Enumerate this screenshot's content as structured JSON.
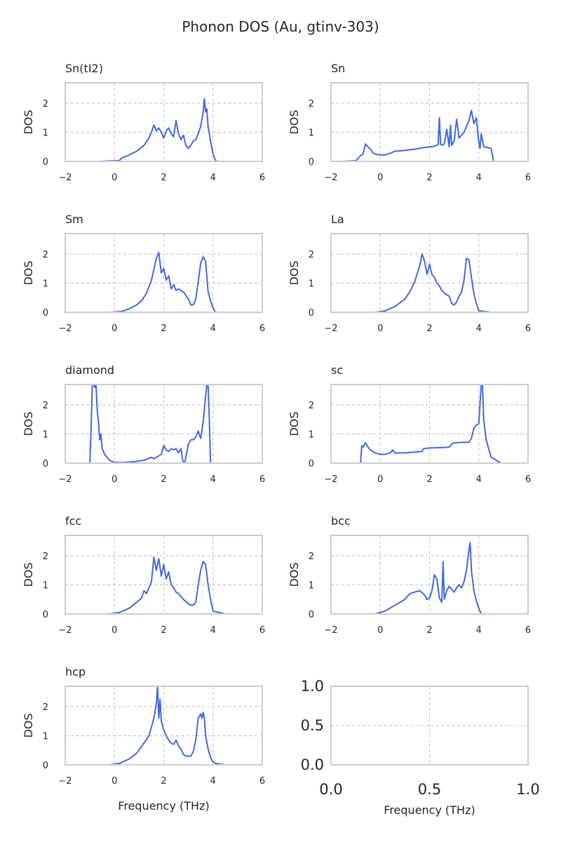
{
  "figure": {
    "title": "Phonon DOS (Au, gtinv-303)",
    "xlabel": "Frequency (THz)",
    "ylabel": "DOS",
    "colors": {
      "line": "#4169e1",
      "spine": "#cccccc",
      "grid": "#cccccc",
      "text": "#262626"
    }
  },
  "chart_data": [
    {
      "type": "line",
      "title": "Sn(tI2)",
      "xlabel": "",
      "ylabel": "DOS",
      "xlim": [
        -2,
        6
      ],
      "ylim": [
        0,
        2.7
      ],
      "xticks": [
        -2,
        0,
        2,
        4,
        6
      ],
      "yticks": [
        0,
        1,
        2
      ],
      "grid": true,
      "series": [
        {
          "x": [
            -0.6,
            0.2,
            0.3,
            0.6,
            0.9,
            1.2,
            1.4,
            1.5,
            1.6,
            1.7,
            1.8,
            1.9,
            2.0,
            2.1,
            2.2,
            2.3,
            2.4,
            2.5,
            2.6,
            2.7,
            2.8,
            2.9,
            3.0,
            3.1,
            3.2,
            3.3,
            3.4,
            3.5,
            3.6,
            3.65,
            3.7,
            3.75,
            3.8,
            3.9,
            4.0,
            4.1,
            4.2,
            4.7
          ],
          "y": [
            0,
            0.03,
            0.12,
            0.22,
            0.35,
            0.55,
            0.8,
            1.0,
            1.25,
            1.05,
            1.15,
            1.0,
            0.8,
            1.05,
            1.15,
            0.95,
            0.85,
            1.4,
            0.95,
            0.75,
            0.9,
            0.55,
            0.45,
            0.55,
            0.7,
            0.75,
            0.95,
            1.2,
            1.7,
            2.15,
            1.7,
            1.8,
            1.2,
            0.7,
            0.25,
            0.03,
            0,
            0
          ]
        }
      ]
    },
    {
      "type": "line",
      "title": "Sn",
      "xlabel": "",
      "ylabel": "DOS",
      "xlim": [
        -2,
        6
      ],
      "ylim": [
        0,
        2.7
      ],
      "xticks": [
        -2,
        0,
        2,
        4,
        6
      ],
      "yticks": [
        0,
        1,
        2
      ],
      "grid": true,
      "series": [
        {
          "x": [
            -1.6,
            -1.0,
            -0.9,
            -0.8,
            -0.7,
            -0.6,
            -0.5,
            -0.4,
            -0.3,
            -0.2,
            0,
            0.2,
            0.4,
            0.6,
            0.8,
            1.0,
            1.4,
            1.8,
            2.0,
            2.2,
            2.35,
            2.4,
            2.45,
            2.5,
            2.6,
            2.7,
            2.8,
            2.85,
            2.9,
            3.0,
            3.1,
            3.2,
            3.3,
            3.4,
            3.6,
            3.7,
            3.8,
            3.9,
            4.0,
            4.05,
            4.1,
            4.2,
            4.5,
            4.6,
            5.1
          ],
          "y": [
            0,
            0.02,
            0.1,
            0.2,
            0.25,
            0.6,
            0.5,
            0.42,
            0.3,
            0.25,
            0.22,
            0.22,
            0.28,
            0.35,
            0.36,
            0.38,
            0.42,
            0.48,
            0.5,
            0.52,
            0.58,
            1.5,
            0.6,
            0.55,
            0.6,
            1.1,
            0.5,
            1.25,
            0.55,
            0.7,
            1.45,
            0.8,
            0.9,
            1.0,
            1.4,
            1.75,
            1.3,
            1.5,
            0.65,
            0.45,
            0.95,
            0.5,
            0.45,
            0,
            0
          ]
        }
      ]
    },
    {
      "type": "line",
      "title": "Sm",
      "xlabel": "",
      "ylabel": "DOS",
      "xlim": [
        -2,
        6
      ],
      "ylim": [
        0,
        2.7
      ],
      "xticks": [
        -2,
        0,
        2,
        4,
        6
      ],
      "yticks": [
        0,
        1,
        2
      ],
      "grid": true,
      "series": [
        {
          "x": [
            -0.2,
            0.3,
            0.6,
            0.9,
            1.1,
            1.3,
            1.5,
            1.7,
            1.8,
            1.9,
            2.0,
            2.1,
            2.2,
            2.3,
            2.4,
            2.5,
            2.6,
            2.8,
            3.0,
            3.1,
            3.2,
            3.3,
            3.4,
            3.5,
            3.6,
            3.7,
            3.8,
            3.9,
            4.0,
            4.1,
            4.6
          ],
          "y": [
            0,
            0.03,
            0.12,
            0.25,
            0.4,
            0.65,
            1.1,
            1.85,
            2.05,
            1.35,
            1.5,
            1.1,
            1.25,
            0.8,
            0.95,
            0.75,
            0.8,
            0.7,
            0.45,
            0.25,
            0.25,
            0.45,
            1.05,
            1.7,
            1.9,
            1.75,
            0.7,
            0.4,
            0.15,
            0,
            0
          ]
        }
      ]
    },
    {
      "type": "line",
      "title": "La",
      "xlabel": "",
      "ylabel": "DOS",
      "xlim": [
        -2,
        6
      ],
      "ylim": [
        0,
        2.7
      ],
      "xticks": [
        -2,
        0,
        2,
        4,
        6
      ],
      "yticks": [
        0,
        1,
        2
      ],
      "grid": true,
      "series": [
        {
          "x": [
            -0.2,
            0.2,
            0.6,
            1.0,
            1.2,
            1.4,
            1.6,
            1.7,
            1.8,
            1.9,
            2.0,
            2.1,
            2.2,
            2.3,
            2.4,
            2.5,
            2.6,
            2.7,
            2.8,
            2.9,
            3.0,
            3.1,
            3.2,
            3.3,
            3.4,
            3.5,
            3.6,
            3.7,
            3.8,
            3.9,
            4.0,
            4.5
          ],
          "y": [
            0,
            0.05,
            0.2,
            0.45,
            0.7,
            1.05,
            1.6,
            2.0,
            1.75,
            1.3,
            1.65,
            1.3,
            1.2,
            1.0,
            0.9,
            0.75,
            0.65,
            0.6,
            0.55,
            0.3,
            0.25,
            0.35,
            0.55,
            0.7,
            1.1,
            1.85,
            1.8,
            1.2,
            0.65,
            0.3,
            0.05,
            0
          ]
        }
      ]
    },
    {
      "type": "line",
      "title": "diamond",
      "xlabel": "",
      "ylabel": "DOS",
      "xlim": [
        -2,
        6
      ],
      "ylim": [
        0,
        2.7
      ],
      "xticks": [
        -2,
        0,
        2,
        4,
        6
      ],
      "yticks": [
        0,
        1,
        2
      ],
      "grid": true,
      "series": [
        {
          "x": [
            -1.4,
            -1.0,
            -0.95,
            -0.9,
            -0.85,
            -0.8,
            -0.75,
            -0.7,
            -0.65,
            -0.6,
            -0.55,
            -0.5,
            -0.4,
            -0.2,
            0,
            0.4,
            0.8,
            1.2,
            1.5,
            1.6,
            1.7,
            1.9,
            2.0,
            2.1,
            2.2,
            2.3,
            2.4,
            2.5,
            2.6,
            2.7,
            2.75,
            2.8,
            2.85,
            3.0,
            3.1,
            3.2,
            3.3,
            3.4,
            3.5,
            3.6,
            3.7,
            3.75,
            3.8,
            3.85,
            3.9,
            4.4
          ],
          "y": [
            0,
            0,
            1.2,
            2.7,
            2.7,
            2.6,
            2.7,
            1.8,
            1.4,
            0.8,
            1.0,
            0.5,
            0.3,
            0.1,
            0.02,
            0.02,
            0.05,
            0.1,
            0.2,
            0.15,
            0.2,
            0.3,
            0.6,
            0.45,
            0.4,
            0.5,
            0.45,
            0.5,
            0.35,
            0.5,
            0.2,
            0,
            0,
            0.65,
            0.8,
            0.8,
            0.9,
            1.1,
            0.85,
            1.4,
            2.3,
            2.7,
            2.7,
            1.5,
            0,
            0
          ]
        }
      ]
    },
    {
      "type": "line",
      "title": "sc",
      "xlabel": "",
      "ylabel": "DOS",
      "xlim": [
        -2,
        6
      ],
      "ylim": [
        0,
        2.7
      ],
      "xticks": [
        -2,
        0,
        2,
        4,
        6
      ],
      "yticks": [
        0,
        1,
        2
      ],
      "grid": true,
      "series": [
        {
          "x": [
            -1.3,
            -0.8,
            -0.75,
            -0.7,
            -0.6,
            -0.5,
            -0.4,
            -0.2,
            0,
            0.2,
            0.4,
            0.5,
            0.6,
            1.0,
            1.7,
            1.75,
            1.8,
            2.0,
            2.5,
            2.8,
            2.9,
            3.0,
            3.6,
            3.7,
            3.8,
            3.9,
            4.0,
            4.1,
            4.15,
            4.2,
            4.3,
            4.5,
            4.9
          ],
          "y": [
            0,
            0,
            0.6,
            0.55,
            0.7,
            0.55,
            0.45,
            0.35,
            0.3,
            0.3,
            0.35,
            0.45,
            0.35,
            0.35,
            0.4,
            0.5,
            0.5,
            0.52,
            0.53,
            0.55,
            0.65,
            0.7,
            0.72,
            0.85,
            1.2,
            1.3,
            1.35,
            2.7,
            2.7,
            1.5,
            0.8,
            0.2,
            0
          ]
        }
      ]
    },
    {
      "type": "line",
      "title": "fcc",
      "xlabel": "",
      "ylabel": "DOS",
      "xlim": [
        -2,
        6
      ],
      "ylim": [
        0,
        2.7
      ],
      "xticks": [
        -2,
        0,
        2,
        4,
        6
      ],
      "yticks": [
        0,
        1,
        2
      ],
      "grid": true,
      "series": [
        {
          "x": [
            -0.2,
            0.2,
            0.6,
            0.9,
            1.1,
            1.2,
            1.3,
            1.4,
            1.5,
            1.6,
            1.7,
            1.8,
            1.9,
            2.0,
            2.1,
            2.2,
            2.3,
            2.4,
            2.5,
            2.6,
            2.8,
            3.0,
            3.1,
            3.2,
            3.3,
            3.4,
            3.5,
            3.6,
            3.7,
            3.8,
            3.9,
            4.0,
            4.5
          ],
          "y": [
            0,
            0.05,
            0.2,
            0.4,
            0.55,
            0.8,
            0.7,
            0.9,
            1.1,
            1.95,
            1.5,
            1.9,
            1.3,
            1.7,
            1.2,
            1.45,
            1.0,
            0.9,
            0.75,
            0.7,
            0.5,
            0.35,
            0.3,
            0.3,
            0.4,
            1.0,
            1.5,
            1.8,
            1.7,
            1.0,
            0.5,
            0.1,
            0
          ]
        }
      ]
    },
    {
      "type": "line",
      "title": "bcc",
      "xlabel": "",
      "ylabel": "DOS",
      "xlim": [
        -2,
        6
      ],
      "ylim": [
        0,
        2.7
      ],
      "xticks": [
        -2,
        0,
        2,
        4,
        6
      ],
      "yticks": [
        0,
        1,
        2
      ],
      "grid": true,
      "series": [
        {
          "x": [
            -0.9,
            -0.2,
            0.2,
            0.6,
            1.0,
            1.2,
            1.4,
            1.6,
            1.8,
            1.9,
            2.0,
            2.1,
            2.2,
            2.3,
            2.4,
            2.5,
            2.55,
            2.6,
            2.7,
            2.8,
            2.9,
            3.0,
            3.1,
            3.2,
            3.3,
            3.4,
            3.5,
            3.6,
            3.65,
            3.7,
            3.8,
            3.9,
            4.0,
            4.1,
            4.5
          ],
          "y": [
            0,
            0,
            0.1,
            0.3,
            0.5,
            0.7,
            0.75,
            0.8,
            0.65,
            0.5,
            0.55,
            0.8,
            1.35,
            1.2,
            0.55,
            0.4,
            1.8,
            0.5,
            0.8,
            0.95,
            0.85,
            0.75,
            0.9,
            1.0,
            0.9,
            1.1,
            1.5,
            2.2,
            2.45,
            1.5,
            0.8,
            0.45,
            0.2,
            0,
            0
          ]
        }
      ]
    },
    {
      "type": "line",
      "title": "hcp",
      "xlabel": "Frequency (THz)",
      "ylabel": "DOS",
      "xlim": [
        -2,
        6
      ],
      "ylim": [
        0,
        2.7
      ],
      "xticks": [
        -2,
        0,
        2,
        4,
        6
      ],
      "yticks": [
        0,
        1,
        2
      ],
      "grid": true,
      "series": [
        {
          "x": [
            -0.2,
            0.2,
            0.6,
            0.9,
            1.2,
            1.4,
            1.6,
            1.7,
            1.75,
            1.8,
            1.85,
            1.9,
            2.0,
            2.1,
            2.2,
            2.3,
            2.4,
            2.5,
            2.6,
            2.7,
            2.8,
            2.9,
            3.0,
            3.1,
            3.2,
            3.3,
            3.4,
            3.5,
            3.55,
            3.6,
            3.65,
            3.7,
            3.8,
            3.9,
            4.0,
            4.1,
            4.5
          ],
          "y": [
            0,
            0.05,
            0.2,
            0.4,
            0.75,
            1.0,
            1.6,
            2.1,
            2.7,
            1.6,
            2.25,
            1.5,
            1.2,
            1.0,
            0.85,
            0.75,
            0.7,
            0.85,
            0.65,
            0.55,
            0.35,
            0.3,
            0.3,
            0.3,
            0.45,
            0.85,
            1.6,
            1.75,
            1.6,
            1.8,
            1.6,
            1.0,
            0.55,
            0.25,
            0.1,
            0.05,
            0
          ]
        }
      ]
    },
    {
      "type": "line",
      "title": "",
      "xlabel": "Frequency (THz)",
      "ylabel": "",
      "xlim": [
        0,
        1
      ],
      "ylim": [
        0,
        1
      ],
      "xticks": [
        0.0,
        0.5,
        1.0
      ],
      "yticks": [
        0.0,
        0.5,
        1.0
      ],
      "grid": true,
      "empty": true,
      "series": []
    }
  ]
}
